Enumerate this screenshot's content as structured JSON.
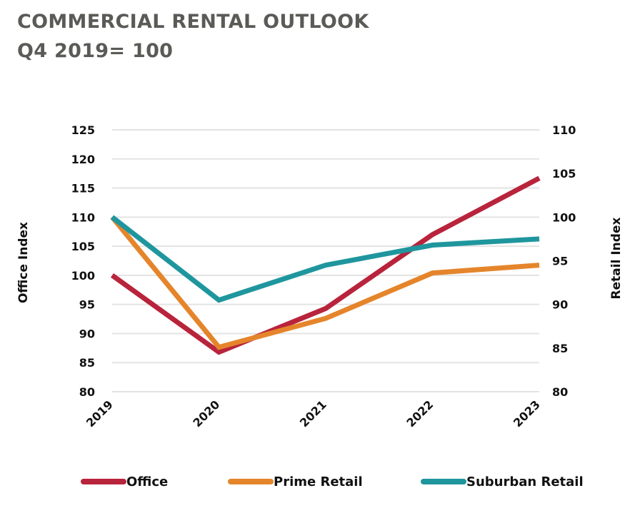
{
  "header": {
    "title": "COMMERCIAL RENTAL OUTLOOK",
    "subtitle": "Q4 2019= 100"
  },
  "chart_data": {
    "type": "line",
    "x": [
      "2019",
      "2020",
      "2021",
      "2022",
      "2023"
    ],
    "ylabel_left": "Office Index",
    "ylabel_right": "Retail Index",
    "ylim_left": [
      80,
      125
    ],
    "yticks_left": [
      80,
      85,
      90,
      95,
      100,
      105,
      110,
      115,
      120,
      125
    ],
    "ylim_right": [
      80,
      110
    ],
    "yticks_right": [
      80,
      85,
      90,
      95,
      100,
      105,
      110
    ],
    "grid": true,
    "legend_position": "bottom",
    "series": [
      {
        "name": "Office",
        "axis": "left",
        "color": "#b8243c",
        "values": [
          100,
          86.8,
          94.3,
          107,
          116.7
        ]
      },
      {
        "name": "Prime Retail",
        "axis": "right",
        "color": "#e5852b",
        "values": [
          100,
          85.1,
          88.4,
          93.6,
          94.5
        ]
      },
      {
        "name": "Suburban Retail",
        "axis": "right",
        "color": "#1f969e",
        "values": [
          100,
          90.5,
          94.5,
          96.8,
          97.5
        ]
      }
    ]
  }
}
